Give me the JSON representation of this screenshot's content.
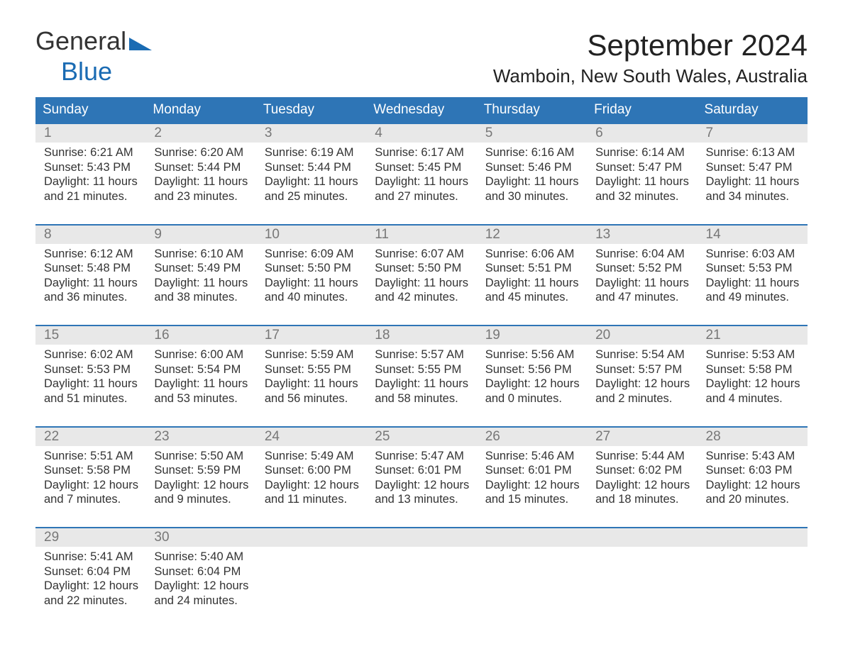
{
  "logo": {
    "text1": "General",
    "text2": "Blue"
  },
  "title": "September 2024",
  "location": "Wamboin, New South Wales, Australia",
  "colors": {
    "header_bg": "#2e75b6",
    "header_text": "#ffffff",
    "row_border": "#2e75b6",
    "daynum_bg": "#e8e8e8",
    "daynum_text": "#777777",
    "body_text": "#333333",
    "accent": "#1a6bb3",
    "background": "#ffffff"
  },
  "day_headers": [
    "Sunday",
    "Monday",
    "Tuesday",
    "Wednesday",
    "Thursday",
    "Friday",
    "Saturday"
  ],
  "weeks": [
    [
      {
        "n": "1",
        "sunrise": "6:21 AM",
        "sunset": "5:43 PM",
        "daylight": "11 hours and 21 minutes."
      },
      {
        "n": "2",
        "sunrise": "6:20 AM",
        "sunset": "5:44 PM",
        "daylight": "11 hours and 23 minutes."
      },
      {
        "n": "3",
        "sunrise": "6:19 AM",
        "sunset": "5:44 PM",
        "daylight": "11 hours and 25 minutes."
      },
      {
        "n": "4",
        "sunrise": "6:17 AM",
        "sunset": "5:45 PM",
        "daylight": "11 hours and 27 minutes."
      },
      {
        "n": "5",
        "sunrise": "6:16 AM",
        "sunset": "5:46 PM",
        "daylight": "11 hours and 30 minutes."
      },
      {
        "n": "6",
        "sunrise": "6:14 AM",
        "sunset": "5:47 PM",
        "daylight": "11 hours and 32 minutes."
      },
      {
        "n": "7",
        "sunrise": "6:13 AM",
        "sunset": "5:47 PM",
        "daylight": "11 hours and 34 minutes."
      }
    ],
    [
      {
        "n": "8",
        "sunrise": "6:12 AM",
        "sunset": "5:48 PM",
        "daylight": "11 hours and 36 minutes."
      },
      {
        "n": "9",
        "sunrise": "6:10 AM",
        "sunset": "5:49 PM",
        "daylight": "11 hours and 38 minutes."
      },
      {
        "n": "10",
        "sunrise": "6:09 AM",
        "sunset": "5:50 PM",
        "daylight": "11 hours and 40 minutes."
      },
      {
        "n": "11",
        "sunrise": "6:07 AM",
        "sunset": "5:50 PM",
        "daylight": "11 hours and 42 minutes."
      },
      {
        "n": "12",
        "sunrise": "6:06 AM",
        "sunset": "5:51 PM",
        "daylight": "11 hours and 45 minutes."
      },
      {
        "n": "13",
        "sunrise": "6:04 AM",
        "sunset": "5:52 PM",
        "daylight": "11 hours and 47 minutes."
      },
      {
        "n": "14",
        "sunrise": "6:03 AM",
        "sunset": "5:53 PM",
        "daylight": "11 hours and 49 minutes."
      }
    ],
    [
      {
        "n": "15",
        "sunrise": "6:02 AM",
        "sunset": "5:53 PM",
        "daylight": "11 hours and 51 minutes."
      },
      {
        "n": "16",
        "sunrise": "6:00 AM",
        "sunset": "5:54 PM",
        "daylight": "11 hours and 53 minutes."
      },
      {
        "n": "17",
        "sunrise": "5:59 AM",
        "sunset": "5:55 PM",
        "daylight": "11 hours and 56 minutes."
      },
      {
        "n": "18",
        "sunrise": "5:57 AM",
        "sunset": "5:55 PM",
        "daylight": "11 hours and 58 minutes."
      },
      {
        "n": "19",
        "sunrise": "5:56 AM",
        "sunset": "5:56 PM",
        "daylight": "12 hours and 0 minutes."
      },
      {
        "n": "20",
        "sunrise": "5:54 AM",
        "sunset": "5:57 PM",
        "daylight": "12 hours and 2 minutes."
      },
      {
        "n": "21",
        "sunrise": "5:53 AM",
        "sunset": "5:58 PM",
        "daylight": "12 hours and 4 minutes."
      }
    ],
    [
      {
        "n": "22",
        "sunrise": "5:51 AM",
        "sunset": "5:58 PM",
        "daylight": "12 hours and 7 minutes."
      },
      {
        "n": "23",
        "sunrise": "5:50 AM",
        "sunset": "5:59 PM",
        "daylight": "12 hours and 9 minutes."
      },
      {
        "n": "24",
        "sunrise": "5:49 AM",
        "sunset": "6:00 PM",
        "daylight": "12 hours and 11 minutes."
      },
      {
        "n": "25",
        "sunrise": "5:47 AM",
        "sunset": "6:01 PM",
        "daylight": "12 hours and 13 minutes."
      },
      {
        "n": "26",
        "sunrise": "5:46 AM",
        "sunset": "6:01 PM",
        "daylight": "12 hours and 15 minutes."
      },
      {
        "n": "27",
        "sunrise": "5:44 AM",
        "sunset": "6:02 PM",
        "daylight": "12 hours and 18 minutes."
      },
      {
        "n": "28",
        "sunrise": "5:43 AM",
        "sunset": "6:03 PM",
        "daylight": "12 hours and 20 minutes."
      }
    ],
    [
      {
        "n": "29",
        "sunrise": "5:41 AM",
        "sunset": "6:04 PM",
        "daylight": "12 hours and 22 minutes."
      },
      {
        "n": "30",
        "sunrise": "5:40 AM",
        "sunset": "6:04 PM",
        "daylight": "12 hours and 24 minutes."
      },
      null,
      null,
      null,
      null,
      null
    ]
  ],
  "labels": {
    "sunrise": "Sunrise: ",
    "sunset": "Sunset: ",
    "daylight": "Daylight: "
  }
}
